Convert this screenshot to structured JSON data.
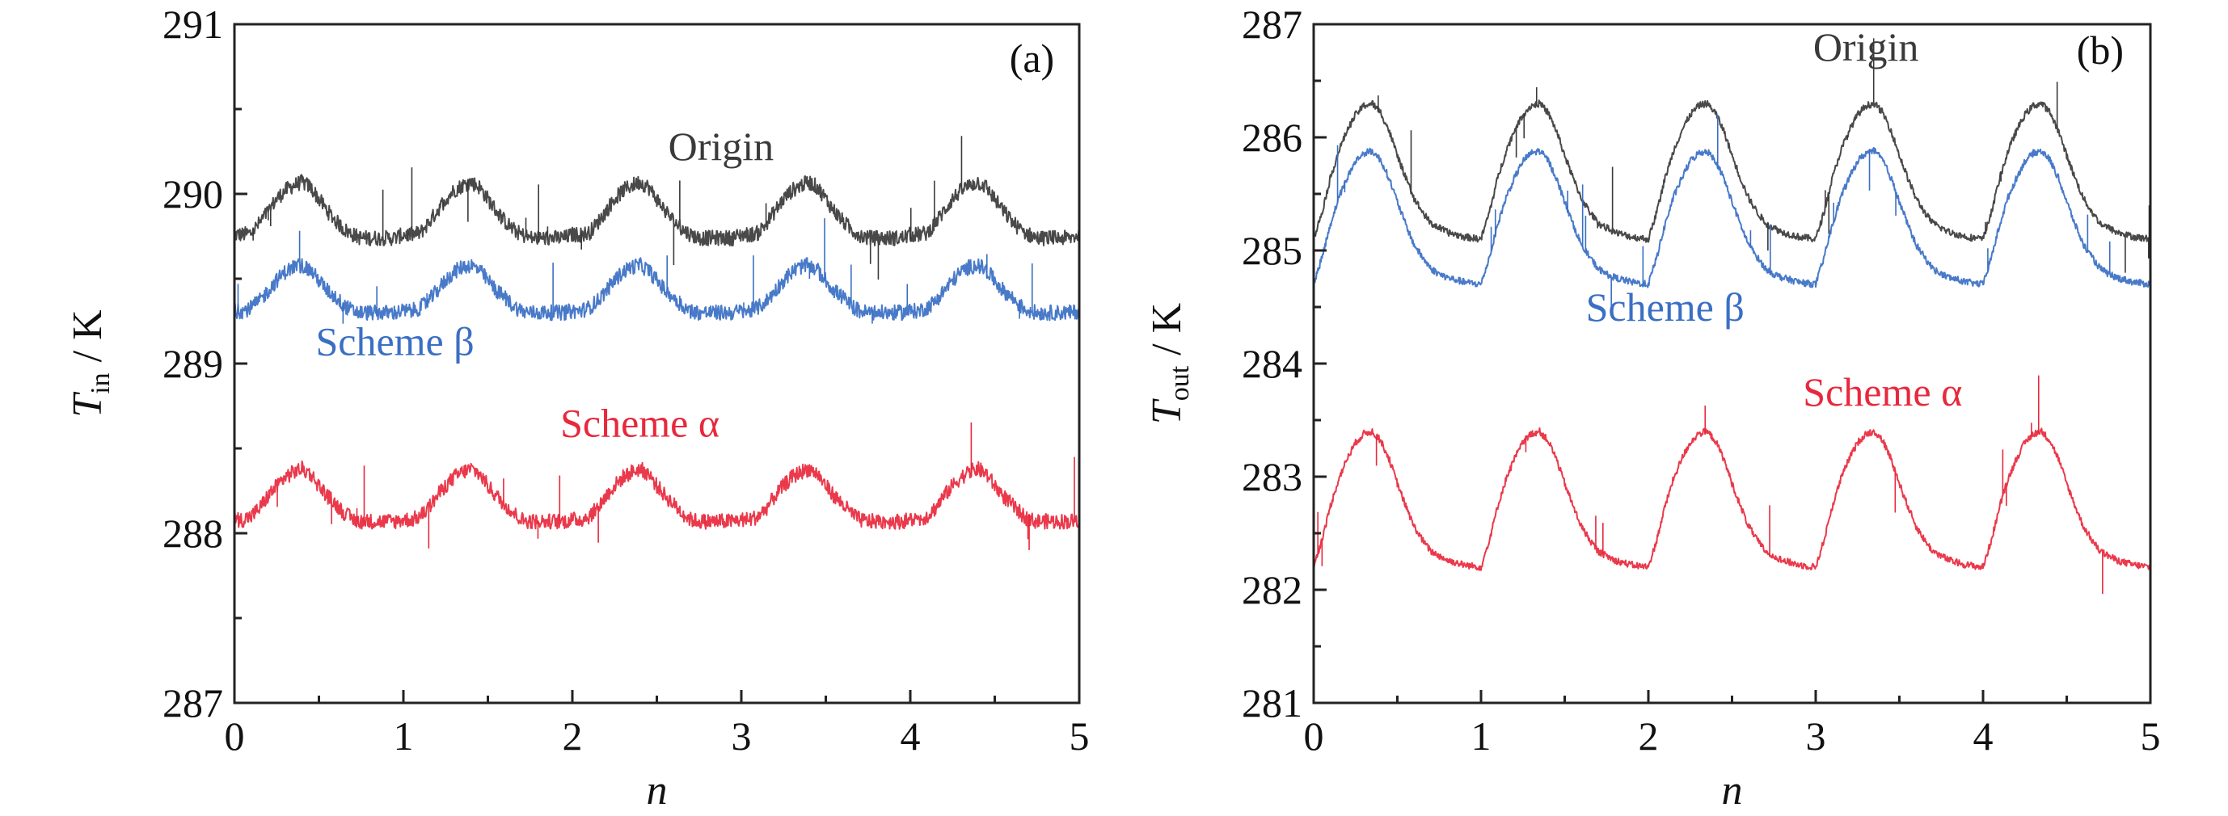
{
  "chart_data": [
    {
      "type": "line",
      "panel_label": "(a)",
      "xlabel": "n",
      "ylabel_main": "T",
      "ylabel_sub": "in",
      "ylabel_unit": " / K",
      "xlim": [
        0,
        5
      ],
      "ylim": [
        287,
        291
      ],
      "xticks": [
        "0",
        "1",
        "2",
        "3",
        "4",
        "5"
      ],
      "yticks": [
        "287",
        "288",
        "289",
        "290",
        "291"
      ],
      "grid": false,
      "x": [
        0,
        0.05,
        0.1,
        0.15,
        0.2,
        0.25,
        0.3,
        0.35,
        0.4,
        0.45,
        0.5,
        0.55,
        0.6,
        0.65,
        0.7,
        0.75,
        0.8,
        0.85,
        0.9,
        0.95,
        1,
        1.05,
        1.1,
        1.15,
        1.2,
        1.25,
        1.3,
        1.35,
        1.4,
        1.45,
        1.5,
        1.55,
        1.6,
        1.65,
        1.7,
        1.75,
        1.8,
        1.85,
        1.9,
        1.95,
        2,
        2.05,
        2.1,
        2.15,
        2.2,
        2.25,
        2.3,
        2.35,
        2.4,
        2.45,
        2.5,
        2.55,
        2.6,
        2.65,
        2.7,
        2.75,
        2.8,
        2.85,
        2.9,
        2.95,
        3,
        3.05,
        3.1,
        3.15,
        3.2,
        3.25,
        3.3,
        3.35,
        3.4,
        3.45,
        3.5,
        3.55,
        3.6,
        3.65,
        3.7,
        3.75,
        3.8,
        3.85,
        3.9,
        3.95,
        4,
        4.05,
        4.1,
        4.15,
        4.2,
        4.25,
        4.3,
        4.35,
        4.4,
        4.45,
        4.5,
        4.55,
        4.6,
        4.65,
        4.7,
        4.75,
        4.8,
        4.85,
        4.9,
        4.95,
        5
      ],
      "series": [
        {
          "name": "Origin",
          "color": "#3a3a3a",
          "values": [
            289.76,
            289.76,
            289.77,
            289.83,
            289.9,
            289.97,
            290.02,
            290.05,
            290.07,
            290.04,
            289.97,
            289.9,
            289.84,
            289.79,
            289.76,
            289.74,
            289.74,
            289.74,
            289.74,
            289.74,
            289.76,
            289.76,
            289.77,
            289.83,
            289.9,
            289.97,
            290.02,
            290.05,
            290.07,
            290.04,
            289.97,
            289.9,
            289.84,
            289.79,
            289.76,
            289.74,
            289.74,
            289.74,
            289.74,
            289.74,
            289.76,
            289.76,
            289.77,
            289.83,
            289.9,
            289.97,
            290.02,
            290.05,
            290.07,
            290.04,
            289.97,
            289.9,
            289.84,
            289.79,
            289.76,
            289.74,
            289.74,
            289.74,
            289.74,
            289.74,
            289.76,
            289.76,
            289.77,
            289.83,
            289.9,
            289.97,
            290.02,
            290.05,
            290.07,
            290.04,
            289.97,
            289.9,
            289.84,
            289.79,
            289.76,
            289.74,
            289.74,
            289.74,
            289.74,
            289.74,
            289.76,
            289.76,
            289.77,
            289.83,
            289.9,
            289.97,
            290.02,
            290.05,
            290.07,
            290.04,
            289.97,
            289.9,
            289.84,
            289.79,
            289.76,
            289.74,
            289.74,
            289.74,
            289.74,
            289.74,
            289.76
          ]
        },
        {
          "name": "Scheme β",
          "color": "#3a6fc4",
          "values": [
            289.31,
            289.31,
            289.33,
            289.37,
            289.43,
            289.49,
            289.54,
            289.57,
            289.58,
            289.55,
            289.49,
            289.43,
            289.39,
            289.34,
            289.31,
            289.3,
            289.3,
            289.3,
            289.3,
            289.3,
            289.31,
            289.31,
            289.33,
            289.37,
            289.43,
            289.49,
            289.54,
            289.57,
            289.58,
            289.55,
            289.49,
            289.43,
            289.39,
            289.34,
            289.31,
            289.3,
            289.3,
            289.3,
            289.3,
            289.3,
            289.31,
            289.31,
            289.33,
            289.37,
            289.43,
            289.49,
            289.54,
            289.57,
            289.58,
            289.55,
            289.49,
            289.43,
            289.39,
            289.34,
            289.31,
            289.3,
            289.3,
            289.3,
            289.3,
            289.3,
            289.31,
            289.31,
            289.33,
            289.37,
            289.43,
            289.49,
            289.54,
            289.57,
            289.58,
            289.55,
            289.49,
            289.43,
            289.39,
            289.34,
            289.31,
            289.3,
            289.3,
            289.3,
            289.3,
            289.3,
            289.31,
            289.31,
            289.33,
            289.37,
            289.43,
            289.49,
            289.54,
            289.57,
            289.58,
            289.55,
            289.49,
            289.43,
            289.39,
            289.34,
            289.31,
            289.3,
            289.3,
            289.3,
            289.3,
            289.3,
            289.31
          ]
        },
        {
          "name": "Scheme α",
          "color": "#e8283c",
          "values": [
            288.08,
            288.08,
            288.1,
            288.15,
            288.22,
            288.28,
            288.33,
            288.36,
            288.38,
            288.35,
            288.28,
            288.22,
            288.17,
            288.12,
            288.08,
            288.07,
            288.07,
            288.07,
            288.07,
            288.07,
            288.08,
            288.08,
            288.1,
            288.15,
            288.22,
            288.28,
            288.33,
            288.36,
            288.38,
            288.35,
            288.28,
            288.22,
            288.17,
            288.12,
            288.08,
            288.07,
            288.07,
            288.07,
            288.07,
            288.07,
            288.08,
            288.08,
            288.1,
            288.15,
            288.22,
            288.28,
            288.33,
            288.36,
            288.38,
            288.35,
            288.28,
            288.22,
            288.17,
            288.12,
            288.08,
            288.07,
            288.07,
            288.07,
            288.07,
            288.07,
            288.08,
            288.08,
            288.1,
            288.15,
            288.22,
            288.28,
            288.33,
            288.36,
            288.38,
            288.35,
            288.28,
            288.22,
            288.17,
            288.12,
            288.08,
            288.07,
            288.07,
            288.07,
            288.07,
            288.07,
            288.08,
            288.08,
            288.1,
            288.15,
            288.22,
            288.28,
            288.33,
            288.36,
            288.38,
            288.35,
            288.28,
            288.22,
            288.17,
            288.12,
            288.08,
            288.07,
            288.07,
            288.07,
            288.07,
            288.07,
            288.08
          ]
        }
      ]
    },
    {
      "type": "line",
      "panel_label": "(b)",
      "xlabel": "n",
      "ylabel_main": "T",
      "ylabel_sub": "out",
      "ylabel_unit": " / K",
      "xlim": [
        0,
        5
      ],
      "ylim": [
        281,
        287
      ],
      "xticks": [
        "0",
        "1",
        "2",
        "3",
        "4",
        "5"
      ],
      "yticks": [
        "281",
        "282",
        "283",
        "284",
        "285",
        "286",
        "287"
      ],
      "grid": false,
      "x": [
        0,
        0.05,
        0.1,
        0.15,
        0.2,
        0.25,
        0.3,
        0.35,
        0.4,
        0.45,
        0.5,
        0.55,
        0.6,
        0.65,
        0.7,
        0.75,
        0.8,
        0.85,
        0.9,
        0.95,
        1,
        1.05,
        1.1,
        1.15,
        1.2,
        1.25,
        1.3,
        1.35,
        1.4,
        1.45,
        1.5,
        1.55,
        1.6,
        1.65,
        1.7,
        1.75,
        1.8,
        1.85,
        1.9,
        1.95,
        2,
        2.05,
        2.1,
        2.15,
        2.2,
        2.25,
        2.3,
        2.35,
        2.4,
        2.45,
        2.5,
        2.55,
        2.6,
        2.65,
        2.7,
        2.75,
        2.8,
        2.85,
        2.9,
        2.95,
        3,
        3.05,
        3.1,
        3.15,
        3.2,
        3.25,
        3.3,
        3.35,
        3.4,
        3.45,
        3.5,
        3.55,
        3.6,
        3.65,
        3.7,
        3.75,
        3.8,
        3.85,
        3.9,
        3.95,
        4,
        4.05,
        4.1,
        4.15,
        4.2,
        4.25,
        4.3,
        4.35,
        4.4,
        4.45,
        4.5,
        4.55,
        4.6,
        4.65,
        4.7,
        4.75,
        4.8,
        4.85,
        4.9,
        4.95,
        5
      ],
      "series": [
        {
          "name": "Origin",
          "color": "#3a3a3a",
          "values": [
            285.1,
            285.34,
            285.64,
            285.88,
            286.06,
            286.2,
            286.28,
            286.3,
            286.22,
            286.06,
            285.84,
            285.64,
            285.46,
            285.34,
            285.24,
            285.2,
            285.16,
            285.14,
            285.12,
            285.11,
            285.1,
            285.34,
            285.64,
            285.88,
            286.06,
            286.2,
            286.28,
            286.3,
            286.22,
            286.06,
            285.84,
            285.64,
            285.46,
            285.34,
            285.24,
            285.2,
            285.16,
            285.14,
            285.12,
            285.11,
            285.1,
            285.34,
            285.64,
            285.88,
            286.06,
            286.2,
            286.28,
            286.3,
            286.22,
            286.06,
            285.84,
            285.64,
            285.46,
            285.34,
            285.24,
            285.2,
            285.16,
            285.14,
            285.12,
            285.11,
            285.1,
            285.34,
            285.64,
            285.88,
            286.06,
            286.2,
            286.28,
            286.3,
            286.22,
            286.06,
            285.84,
            285.64,
            285.46,
            285.34,
            285.24,
            285.2,
            285.16,
            285.14,
            285.12,
            285.11,
            285.1,
            285.34,
            285.64,
            285.88,
            286.06,
            286.2,
            286.28,
            286.3,
            286.22,
            286.06,
            285.84,
            285.64,
            285.46,
            285.34,
            285.24,
            285.2,
            285.16,
            285.14,
            285.12,
            285.11,
            285.1
          ]
        },
        {
          "name": "Scheme β",
          "color": "#3a6fc4",
          "values": [
            284.7,
            284.94,
            285.23,
            285.47,
            285.64,
            285.79,
            285.86,
            285.88,
            285.8,
            285.64,
            285.43,
            285.23,
            285.05,
            284.94,
            284.84,
            284.79,
            284.76,
            284.74,
            284.72,
            284.71,
            284.7,
            284.94,
            285.23,
            285.47,
            285.64,
            285.79,
            285.86,
            285.88,
            285.8,
            285.64,
            285.43,
            285.23,
            285.05,
            284.94,
            284.84,
            284.79,
            284.76,
            284.74,
            284.72,
            284.71,
            284.7,
            284.94,
            285.23,
            285.47,
            285.64,
            285.79,
            285.86,
            285.88,
            285.8,
            285.64,
            285.43,
            285.23,
            285.05,
            284.94,
            284.84,
            284.79,
            284.76,
            284.74,
            284.72,
            284.71,
            284.7,
            284.94,
            285.23,
            285.47,
            285.64,
            285.79,
            285.86,
            285.88,
            285.8,
            285.64,
            285.43,
            285.23,
            285.05,
            284.94,
            284.84,
            284.79,
            284.76,
            284.74,
            284.72,
            284.71,
            284.7,
            284.94,
            285.23,
            285.47,
            285.64,
            285.79,
            285.86,
            285.88,
            285.8,
            285.64,
            285.43,
            285.23,
            285.05,
            284.94,
            284.84,
            284.79,
            284.76,
            284.74,
            284.72,
            284.71,
            284.7
          ]
        },
        {
          "name": "Scheme α",
          "color": "#e8283c",
          "values": [
            282.2,
            282.44,
            282.74,
            282.98,
            283.16,
            283.3,
            283.38,
            283.4,
            283.32,
            283.16,
            282.94,
            282.74,
            282.56,
            282.44,
            282.34,
            282.3,
            282.26,
            282.24,
            282.22,
            282.21,
            282.2,
            282.44,
            282.74,
            282.98,
            283.16,
            283.3,
            283.38,
            283.4,
            283.32,
            283.16,
            282.94,
            282.74,
            282.56,
            282.44,
            282.34,
            282.3,
            282.26,
            282.24,
            282.22,
            282.21,
            282.2,
            282.44,
            282.74,
            282.98,
            283.16,
            283.3,
            283.38,
            283.4,
            283.32,
            283.16,
            282.94,
            282.74,
            282.56,
            282.44,
            282.34,
            282.3,
            282.26,
            282.24,
            282.22,
            282.21,
            282.2,
            282.44,
            282.74,
            282.98,
            283.16,
            283.3,
            283.38,
            283.4,
            283.32,
            283.16,
            282.94,
            282.74,
            282.56,
            282.44,
            282.34,
            282.3,
            282.26,
            282.24,
            282.22,
            282.21,
            282.2,
            282.44,
            282.74,
            282.98,
            283.16,
            283.3,
            283.38,
            283.4,
            283.32,
            283.16,
            282.94,
            282.74,
            282.56,
            282.44,
            282.34,
            282.3,
            282.26,
            282.24,
            282.22,
            282.21,
            282.2
          ]
        }
      ]
    }
  ]
}
